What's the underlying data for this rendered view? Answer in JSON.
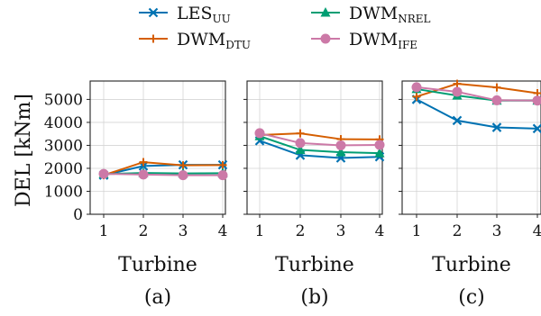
{
  "chart_data": [
    {
      "type": "line",
      "caption": "(a)",
      "xlabel": "Turbine",
      "ylabel": "DEL [kNm]",
      "x": [
        1,
        2,
        3,
        4
      ],
      "xticks": [
        "1",
        "2",
        "3",
        "4"
      ],
      "ylim": [
        0,
        5800
      ],
      "yticks": [
        "0",
        "1000",
        "2000",
        "3000",
        "4000",
        "5000"
      ],
      "grid": true,
      "series": [
        {
          "name": "LES",
          "sub": "UU",
          "color": "#0072B2",
          "marker": "x",
          "values": [
            1700,
            2100,
            2150,
            2150
          ]
        },
        {
          "name": "DWM",
          "sub": "DTU",
          "color": "#D55E00",
          "marker": "plus",
          "values": [
            1700,
            2270,
            2130,
            2140
          ]
        },
        {
          "name": "DWM",
          "sub": "NREL",
          "color": "#009E73",
          "marker": "triangle",
          "values": [
            1750,
            1800,
            1780,
            1790
          ]
        },
        {
          "name": "DWM",
          "sub": "IFE",
          "color": "#CC79A7",
          "marker": "circle",
          "values": [
            1760,
            1730,
            1700,
            1700
          ]
        }
      ]
    },
    {
      "type": "line",
      "caption": "(b)",
      "xlabel": "Turbine",
      "x": [
        1,
        2,
        3,
        4
      ],
      "xticks": [
        "1",
        "2",
        "3",
        "4"
      ],
      "ylim": [
        0,
        5800
      ],
      "grid": true,
      "series": [
        {
          "name": "LES",
          "sub": "UU",
          "color": "#0072B2",
          "marker": "x",
          "values": [
            3200,
            2570,
            2450,
            2500
          ]
        },
        {
          "name": "DWM",
          "sub": "DTU",
          "color": "#D55E00",
          "marker": "plus",
          "values": [
            3450,
            3520,
            3270,
            3260
          ]
        },
        {
          "name": "DWM",
          "sub": "NREL",
          "color": "#009E73",
          "marker": "triangle",
          "values": [
            3400,
            2800,
            2700,
            2660
          ]
        },
        {
          "name": "DWM",
          "sub": "IFE",
          "color": "#CC79A7",
          "marker": "circle",
          "values": [
            3530,
            3100,
            3000,
            3020
          ]
        }
      ]
    },
    {
      "type": "line",
      "caption": "(c)",
      "xlabel": "Turbine",
      "x": [
        1,
        2,
        3,
        4
      ],
      "xticks": [
        "1",
        "2",
        "3",
        "4"
      ],
      "ylim": [
        0,
        5800
      ],
      "grid": true,
      "series": [
        {
          "name": "LES",
          "sub": "UU",
          "color": "#0072B2",
          "marker": "x",
          "values": [
            5000,
            4080,
            3780,
            3730
          ]
        },
        {
          "name": "DWM",
          "sub": "DTU",
          "color": "#D55E00",
          "marker": "plus",
          "values": [
            5120,
            5680,
            5520,
            5270
          ]
        },
        {
          "name": "DWM",
          "sub": "NREL",
          "color": "#009E73",
          "marker": "triangle",
          "values": [
            5450,
            5170,
            4950,
            4950
          ]
        },
        {
          "name": "DWM",
          "sub": "IFE",
          "color": "#CC79A7",
          "marker": "circle",
          "values": [
            5530,
            5330,
            4960,
            4950
          ]
        }
      ]
    }
  ],
  "legend": {
    "placement": "top-center",
    "entries": [
      {
        "name": "LES",
        "sub": "UU",
        "color": "#0072B2",
        "marker": "x"
      },
      {
        "name": "DWM",
        "sub": "DTU",
        "color": "#D55E00",
        "marker": "plus"
      },
      {
        "name": "DWM",
        "sub": "NREL",
        "color": "#009E73",
        "marker": "triangle"
      },
      {
        "name": "DWM",
        "sub": "IFE",
        "color": "#CC79A7",
        "marker": "circle"
      }
    ]
  }
}
